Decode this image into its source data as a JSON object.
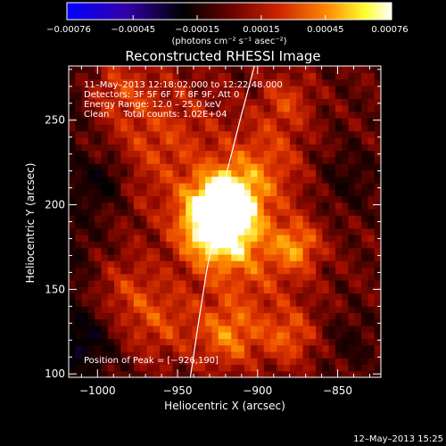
{
  "chart_data": {
    "type": "heatmap",
    "title": "Reconstructed RHESSI Image",
    "xlabel": "Heliocentric X (arcsec)",
    "ylabel": "Heliocentric Y (arcsec)",
    "xlim": [
      -1018,
      -823
    ],
    "ylim": [
      98,
      282
    ],
    "x_ticks": [
      -1000,
      -950,
      -900,
      -850
    ],
    "x_tick_labels": [
      "−1000",
      "−950",
      "−900",
      "−850"
    ],
    "y_ticks": [
      100,
      150,
      200,
      250
    ],
    "y_tick_labels": [
      "100",
      "150",
      "200",
      "250"
    ],
    "colorbar": {
      "min": -0.00076,
      "max": 0.00076,
      "ticks": [
        -0.00076,
        -0.00045,
        -0.00015,
        0.00015,
        0.00045,
        0.00076
      ],
      "tick_labels": [
        "−0.00076",
        "−0.00045",
        "−0.00015",
        "0.00015",
        "0.00045",
        "0.00076"
      ],
      "unit_label": "(photons cm⁻² s⁻¹ asec⁻²)",
      "colormap": [
        "#0000ff",
        "#3300aa",
        "#000000",
        "#660000",
        "#cc2200",
        "#ff8800",
        "#ffff33",
        "#ffffff"
      ]
    },
    "annotations": [
      "11–May–2013 12:18:02.000 to 12:22:48.000",
      "Detectors: 3F 5F 6F 7F 8F 9F, Att 0",
      "Energy Range: 12.0 – 25.0 keV",
      "Clean     Total counts: 1.02E+04"
    ],
    "peak_label": "Position of Peak = [−926,190]",
    "peak": {
      "x": -926,
      "y": 190
    },
    "sources": [
      {
        "x": -926,
        "y": 190,
        "sigma": 16,
        "amp": 1.0
      },
      {
        "x": -918,
        "y": 204,
        "sigma": 12,
        "amp": 0.55
      },
      {
        "x": -905,
        "y": 168,
        "sigma": 26,
        "amp": 0.35
      },
      {
        "x": -960,
        "y": 238,
        "sigma": 28,
        "amp": 0.32
      },
      {
        "x": -990,
        "y": 270,
        "sigma": 14,
        "amp": 0.28
      },
      {
        "x": -895,
        "y": 225,
        "sigma": 18,
        "amp": 0.35
      },
      {
        "x": -882,
        "y": 262,
        "sigma": 12,
        "amp": 0.3
      },
      {
        "x": -875,
        "y": 176,
        "sigma": 10,
        "amp": 0.42
      },
      {
        "x": -918,
        "y": 122,
        "sigma": 14,
        "amp": 0.45
      },
      {
        "x": -880,
        "y": 122,
        "sigma": 12,
        "amp": 0.38
      },
      {
        "x": -985,
        "y": 150,
        "sigma": 16,
        "amp": 0.28
      },
      {
        "x": -960,
        "y": 130,
        "sigma": 16,
        "amp": 0.3
      },
      {
        "x": -995,
        "y": 215,
        "sigma": 10,
        "amp": -0.3
      },
      {
        "x": -1008,
        "y": 120,
        "sigma": 12,
        "amp": -0.28
      },
      {
        "x": -845,
        "y": 215,
        "sigma": 14,
        "amp": -0.18
      },
      {
        "x": -842,
        "y": 120,
        "sigma": 12,
        "amp": -0.15
      }
    ],
    "limb_curve": [
      [
        -942,
        98
      ],
      [
        -937,
        130
      ],
      [
        -932,
        160
      ],
      [
        -926,
        190
      ],
      [
        -919,
        220
      ],
      [
        -911,
        250
      ],
      [
        -902,
        282
      ]
    ]
  },
  "footer_timestamp": "12–May–2013 15:25"
}
